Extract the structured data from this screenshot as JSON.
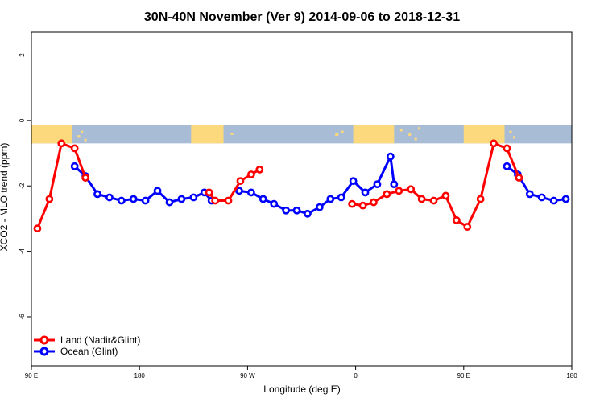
{
  "chart_data": {
    "type": "line",
    "title": "30N-40N November (Ver 9)   2014-09-06 to 2018-12-31",
    "xlabel": "Longitude (deg E)",
    "ylabel": "XCO2 - MLO trend (ppm)",
    "xlim": [
      90,
      540
    ],
    "ylim": [
      -7.5,
      2.7
    ],
    "xticks": [
      {
        "value": 90,
        "label": "90 E"
      },
      {
        "value": 180,
        "label": "180"
      },
      {
        "value": 270,
        "label": "90 W"
      },
      {
        "value": 360,
        "label": "0"
      },
      {
        "value": 450,
        "label": "90 E"
      },
      {
        "value": 540,
        "label": "180"
      }
    ],
    "yticks": [
      {
        "value": 2,
        "label": "2"
      },
      {
        "value": 0,
        "label": "0"
      },
      {
        "value": -2,
        "label": "-2"
      },
      {
        "value": -4,
        "label": "-4"
      },
      {
        "value": -6,
        "label": "-6"
      }
    ],
    "map_strip": {
      "y_top": -0.15,
      "y_bottom": -0.7,
      "ocean_color": "#a9bcd6",
      "land_color": "#fcd97c"
    },
    "legend_position": "bottom-left",
    "series": [
      {
        "name": "Land (Nadir&Glint)",
        "color": "#ff0000",
        "segments": [
          [
            [
              95,
              -3.3
            ],
            [
              105,
              -2.4
            ],
            [
              115,
              -0.7
            ],
            [
              126,
              -0.85
            ],
            [
              135,
              -1.75
            ]
          ],
          [
            [
              238,
              -2.2
            ],
            [
              243,
              -2.45
            ],
            [
              254,
              -2.45
            ],
            [
              264,
              -1.85
            ],
            [
              273,
              -1.65
            ],
            [
              280,
              -1.5
            ]
          ],
          [
            [
              357,
              -2.55
            ],
            [
              366,
              -2.6
            ],
            [
              375,
              -2.5
            ],
            [
              386,
              -2.25
            ],
            [
              396,
              -2.15
            ],
            [
              406,
              -2.1
            ],
            [
              415,
              -2.4
            ],
            [
              425,
              -2.45
            ],
            [
              435,
              -2.3
            ],
            [
              444,
              -3.05
            ],
            [
              453,
              -3.25
            ],
            [
              464,
              -2.4
            ],
            [
              475,
              -0.7
            ],
            [
              486,
              -0.85
            ],
            [
              496,
              -1.75
            ]
          ]
        ]
      },
      {
        "name": "Ocean (Glint)",
        "color": "#0000ff",
        "segments": [
          [
            [
              126,
              -1.4
            ],
            [
              135,
              -1.7
            ],
            [
              145,
              -2.25
            ],
            [
              155,
              -2.35
            ],
            [
              165,
              -2.45
            ],
            [
              175,
              -2.4
            ],
            [
              185,
              -2.45
            ],
            [
              195,
              -2.15
            ],
            [
              205,
              -2.5
            ],
            [
              215,
              -2.4
            ],
            [
              225,
              -2.35
            ],
            [
              234,
              -2.2
            ],
            [
              240,
              -2.45
            ]
          ],
          [
            [
              263,
              -2.15
            ],
            [
              273,
              -2.2
            ],
            [
              283,
              -2.4
            ],
            [
              292,
              -2.55
            ],
            [
              302,
              -2.75
            ],
            [
              311,
              -2.75
            ],
            [
              320,
              -2.85
            ],
            [
              330,
              -2.65
            ],
            [
              339,
              -2.4
            ],
            [
              348,
              -2.35
            ],
            [
              358,
              -1.85
            ],
            [
              368,
              -2.2
            ],
            [
              378,
              -1.95
            ],
            [
              389,
              -1.1
            ],
            [
              392,
              -1.95
            ]
          ],
          [
            [
              486,
              -1.4
            ],
            [
              495,
              -1.65
            ],
            [
              505,
              -2.25
            ],
            [
              515,
              -2.35
            ],
            [
              525,
              -2.45
            ],
            [
              535,
              -2.4
            ]
          ]
        ]
      }
    ]
  }
}
